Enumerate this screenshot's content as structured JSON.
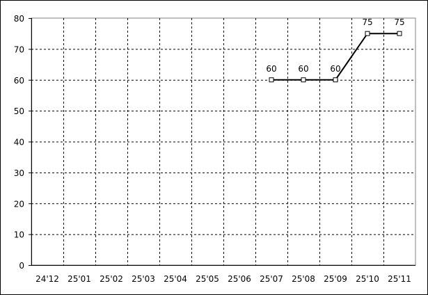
{
  "chart_data": {
    "type": "line",
    "title": "",
    "xlabel": "",
    "ylabel": "",
    "categories": [
      "24'12",
      "25'01",
      "25'02",
      "25'03",
      "25'04",
      "25'05",
      "25'06",
      "25'07",
      "25'08",
      "25'09",
      "25'10",
      "25'11"
    ],
    "series": [
      {
        "values": [
          null,
          null,
          null,
          null,
          null,
          null,
          null,
          60,
          60,
          60,
          75,
          75
        ],
        "color": "#000000",
        "marker": "square"
      }
    ],
    "data_labels": true,
    "ylim": [
      0,
      80
    ],
    "yticks": [
      0,
      10,
      20,
      30,
      40,
      50,
      60,
      70,
      80
    ],
    "grid": true,
    "grid_style": "dashed",
    "legend": "none"
  }
}
